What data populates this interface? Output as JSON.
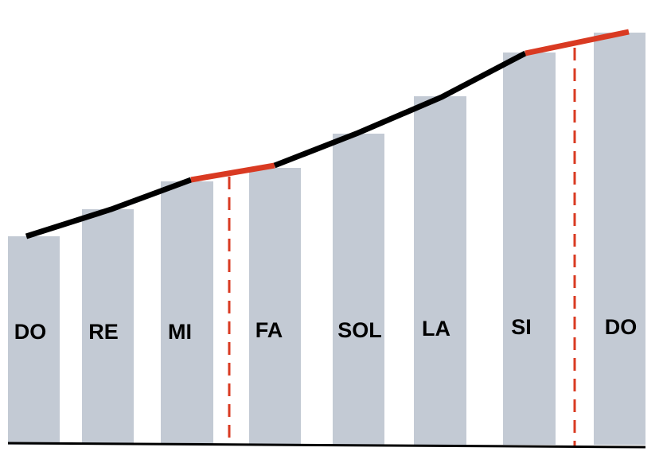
{
  "notes": [
    "DO",
    "RE",
    "MI",
    "FA",
    "SOL",
    "LA",
    "SI",
    "DO"
  ]
}
